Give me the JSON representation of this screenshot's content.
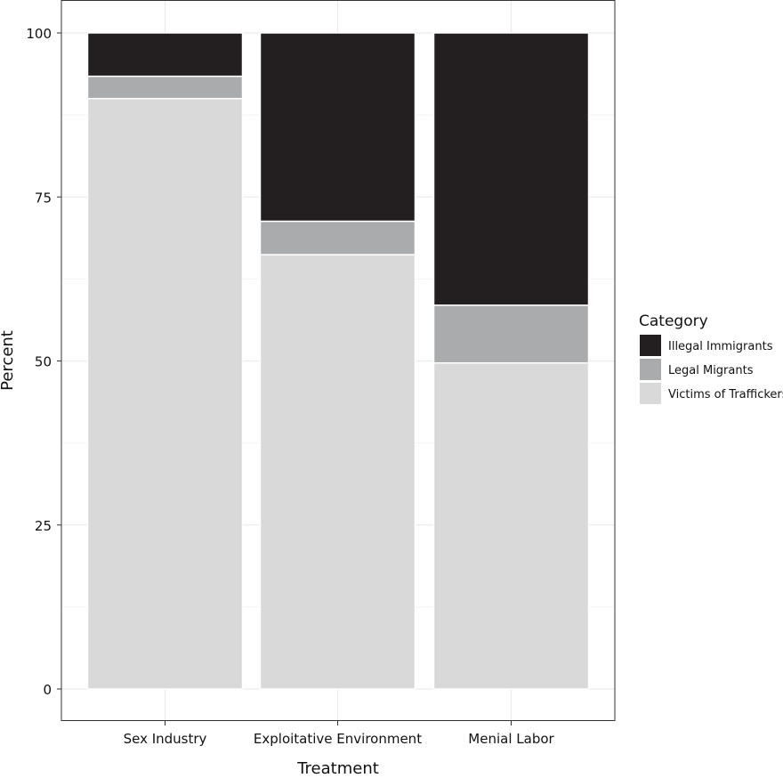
{
  "chart_data": {
    "type": "bar",
    "stacked": true,
    "xlabel": "Treatment",
    "ylabel": "Percent",
    "categories": [
      "Sex Industry",
      "Exploitative Environment",
      "Menial Labor"
    ],
    "ylim": [
      0,
      100
    ],
    "yticks": [
      0,
      25,
      50,
      75,
      100
    ],
    "grid": true,
    "legend": {
      "title": "Category",
      "position": "right"
    },
    "series": [
      {
        "name": "Victims of Traffickers",
        "color": "#d9d9d9",
        "values": [
          90.0,
          66.2,
          49.7
        ]
      },
      {
        "name": "Legal Migrants",
        "color": "#a9abad",
        "values": [
          3.4,
          5.1,
          8.8
        ]
      },
      {
        "name": "Illegal Immigrants",
        "color": "#231f20",
        "values": [
          6.6,
          28.7,
          41.5
        ]
      }
    ],
    "legend_order": [
      "Illegal Immigrants",
      "Legal Migrants",
      "Victims of Traffickers"
    ]
  }
}
